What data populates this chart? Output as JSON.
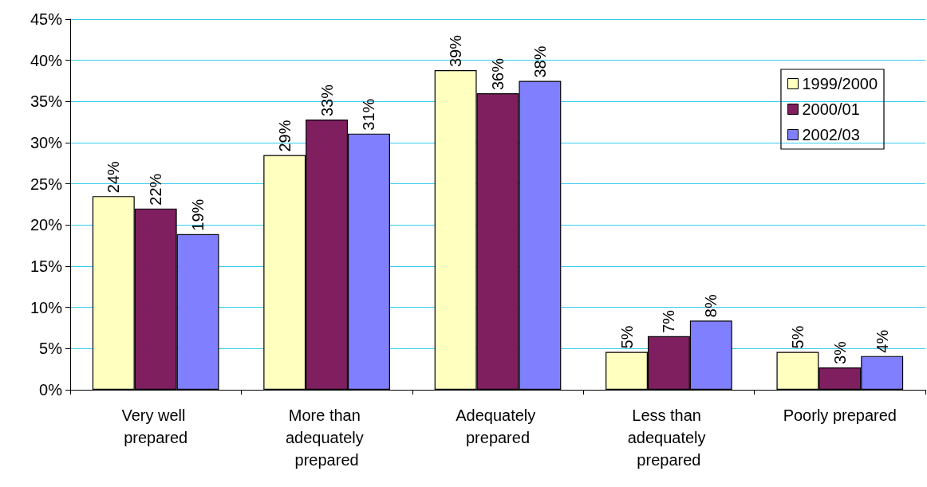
{
  "chart_data": {
    "type": "bar",
    "categories": [
      "Very well prepared",
      "More than adequately prepared",
      "Adequately prepared",
      "Less than adequately prepared",
      "Poorly prepared"
    ],
    "series": [
      {
        "name": "1999/2000",
        "color": "#ffffc0",
        "values": [
          23.5,
          28.5,
          38.8,
          4.6,
          4.6
        ],
        "value_labels": [
          "24%",
          "29%",
          "39%",
          "5%",
          "5%"
        ]
      },
      {
        "name": "2000/01",
        "color": "#7f1f5f",
        "values": [
          22,
          32.8,
          36,
          6.5,
          2.7
        ],
        "value_labels": [
          "22%",
          "33%",
          "36%",
          "7%",
          "3%"
        ]
      },
      {
        "name": "2002/03",
        "color": "#8080ff",
        "values": [
          18.9,
          31.1,
          37.5,
          8.4,
          4.1
        ],
        "value_labels": [
          "19%",
          "31%",
          "38%",
          "8%",
          "4%"
        ]
      }
    ],
    "ylim": [
      0,
      45
    ],
    "yticks": [
      {
        "value": 0,
        "label": "0%"
      },
      {
        "value": 5,
        "label": "5%"
      },
      {
        "value": 10,
        "label": "10%"
      },
      {
        "value": 15,
        "label": "15%"
      },
      {
        "value": 20,
        "label": "20%"
      },
      {
        "value": 25,
        "label": "25%"
      },
      {
        "value": 30,
        "label": "30%"
      },
      {
        "value": 35,
        "label": "35%"
      },
      {
        "value": 40,
        "label": "40%"
      },
      {
        "value": 45,
        "label": "45%"
      }
    ],
    "grid": "y",
    "legend": "top right"
  }
}
